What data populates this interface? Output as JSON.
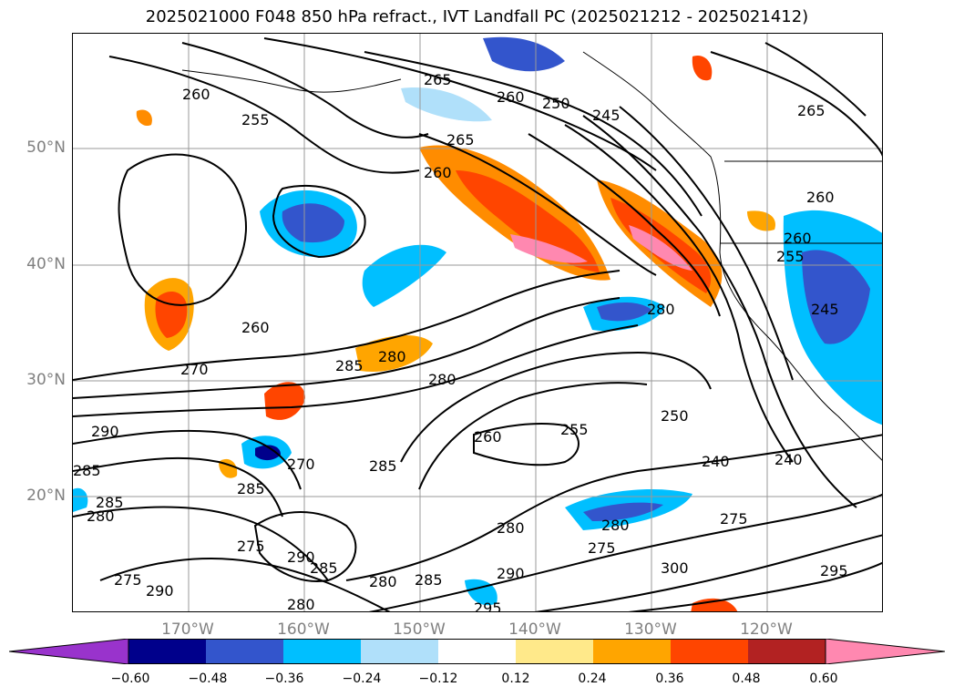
{
  "title": "2025021000 F048 850 hPa refract., IVT Landfall PC (2025021212 - 2025021412)",
  "lat_labels": [
    "50°N",
    "40°N",
    "30°N",
    "20°N"
  ],
  "lon_labels": [
    "170°W",
    "160°W",
    "150°W",
    "140°W",
    "130°W",
    "120°W"
  ],
  "contour_labels": [
    "260",
    "255",
    "265",
    "260",
    "250",
    "245",
    "265",
    "265",
    "260",
    "260",
    "280",
    "260",
    "255",
    "260",
    "240",
    "245",
    "270",
    "285",
    "280",
    "280",
    "250",
    "255",
    "290",
    "285",
    "260",
    "285",
    "240",
    "285",
    "280",
    "285",
    "275",
    "280",
    "290",
    "285",
    "280",
    "285",
    "290",
    "280",
    "275",
    "300",
    "275",
    "290",
    "275",
    "280",
    "295",
    "295",
    "270"
  ],
  "colorbar": {
    "ticks": [
      "−0.60",
      "−0.48",
      "−0.36",
      "−0.24",
      "−0.12",
      "0.12",
      "0.24",
      "0.36",
      "0.48",
      "0.60"
    ],
    "colors": [
      "#9933cc",
      "#00008b",
      "#3355cc",
      "#00bfff",
      "#b0e0fa",
      "#ffffff",
      "#ffe98a",
      "#ffa500",
      "#ff4500",
      "#b22222",
      "#ff88b0"
    ]
  }
}
